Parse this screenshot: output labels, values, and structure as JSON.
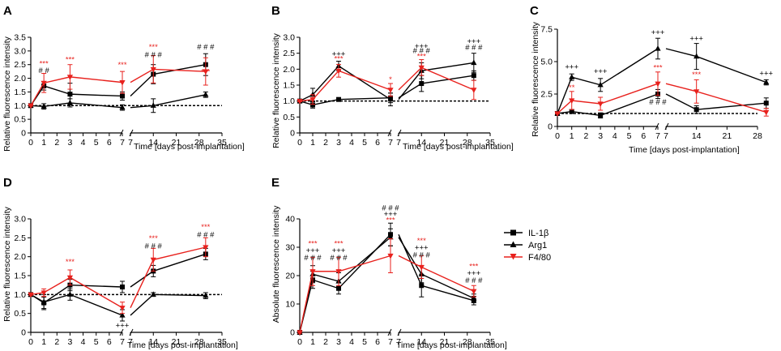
{
  "colors": {
    "il1b": "#000000",
    "arg1": "#000000",
    "f480": "#e8211d",
    "axis": "#000000"
  },
  "legend": [
    {
      "label": "IL-1β",
      "marker": "square",
      "color": "#000000"
    },
    {
      "label": "Arg1",
      "marker": "triangle-up",
      "color": "#000000"
    },
    {
      "label": "F4/80",
      "marker": "triangle-down",
      "color": "#e8211d"
    }
  ],
  "chart_data": [
    {
      "panel": "A",
      "type": "line",
      "ylabel": "Relative fluorescence intensity",
      "xlabel": "Time [days post-implantation]",
      "ylim": [
        0,
        3.5
      ],
      "yticks": [
        "0",
        "0.5",
        "1.0",
        "1.5",
        "2.0",
        "2.5",
        "3.0",
        "3.5"
      ],
      "xticks_left": [
        "0",
        "1",
        "2",
        "3",
        "4",
        "5",
        "6",
        "7"
      ],
      "xticks_right": [
        "7",
        "14",
        "21",
        "28",
        "35"
      ],
      "baseline": 1.0,
      "series": [
        {
          "name": "IL-1β",
          "x": [
            0,
            1,
            3,
            7,
            14,
            30
          ],
          "y": [
            1.0,
            1.72,
            1.42,
            1.35,
            2.15,
            2.5
          ],
          "err": [
            0.02,
            0.15,
            0.4,
            0.15,
            0.35,
            0.4
          ]
        },
        {
          "name": "Arg1",
          "x": [
            0,
            1,
            3,
            7,
            14,
            30
          ],
          "y": [
            1.0,
            0.97,
            1.1,
            0.93,
            1.0,
            1.4
          ],
          "err": [
            0.02,
            0.1,
            0.15,
            0.1,
            0.25,
            0.1
          ]
        },
        {
          "name": "F4/80",
          "x": [
            0,
            1,
            3,
            7,
            14,
            30
          ],
          "y": [
            1.0,
            1.83,
            2.05,
            1.85,
            2.33,
            2.25
          ],
          "err": [
            0.02,
            0.35,
            0.45,
            0.4,
            0.5,
            0.5
          ]
        }
      ],
      "annotations": [
        {
          "x": 1,
          "y": 2.45,
          "text": "***",
          "color": "red"
        },
        {
          "x": 1,
          "y": 2.2,
          "text": "# #",
          "color": "black"
        },
        {
          "x": 3,
          "y": 2.6,
          "text": "***",
          "color": "red"
        },
        {
          "x": 7,
          "y": 2.4,
          "text": "***",
          "color": "red"
        },
        {
          "x": 14,
          "y": 3.05,
          "text": "***",
          "color": "red"
        },
        {
          "x": 14,
          "y": 2.78,
          "text": "# # #",
          "color": "black"
        },
        {
          "x": 30,
          "y": 3.05,
          "text": "# # #",
          "color": "black"
        },
        {
          "x": 30,
          "y": 2.15,
          "text": "***",
          "color": "red"
        }
      ]
    },
    {
      "panel": "B",
      "type": "line",
      "ylabel": "Relative fluorescence intensity",
      "xlabel": "Time [days post-implantation]",
      "ylim": [
        0,
        3.0
      ],
      "yticks": [
        "0",
        "0.5",
        "1.0",
        "1.5",
        "2.0",
        "2.5",
        "3.0"
      ],
      "xticks_left": [
        "0",
        "1",
        "2",
        "3",
        "4",
        "5",
        "6",
        "7"
      ],
      "xticks_right": [
        "7",
        "14",
        "21",
        "28",
        "35"
      ],
      "baseline": 1.0,
      "series": [
        {
          "name": "IL-1β",
          "x": [
            0,
            1,
            3,
            7,
            14,
            30
          ],
          "y": [
            1.0,
            0.88,
            1.05,
            1.1,
            1.55,
            1.8
          ],
          "err": [
            0.02,
            0.1,
            0.04,
            0.15,
            0.25,
            0.15
          ]
        },
        {
          "name": "Arg1",
          "x": [
            0,
            1,
            3,
            7,
            14,
            30
          ],
          "y": [
            1.0,
            1.2,
            2.1,
            1.05,
            1.95,
            2.2
          ],
          "err": [
            0.02,
            0.2,
            0.15,
            0.2,
            0.25,
            0.3
          ]
        },
        {
          "name": "F4/80",
          "x": [
            0,
            1,
            3,
            7,
            14,
            30
          ],
          "y": [
            1.0,
            1.05,
            1.95,
            1.35,
            2.05,
            1.35
          ],
          "err": [
            0.02,
            0.15,
            0.2,
            0.2,
            0.25,
            0.3
          ]
        }
      ],
      "annotations": [
        {
          "x": 3,
          "y": 2.4,
          "text": "+++",
          "color": "black"
        },
        {
          "x": 3,
          "y": 2.25,
          "text": "***",
          "color": "red"
        },
        {
          "x": 7,
          "y": 1.6,
          "text": "*",
          "color": "red"
        },
        {
          "x": 14,
          "y": 2.65,
          "text": "+++",
          "color": "black"
        },
        {
          "x": 14,
          "y": 2.5,
          "text": "# # #",
          "color": "black"
        },
        {
          "x": 14,
          "y": 2.33,
          "text": "***",
          "color": "red"
        },
        {
          "x": 30,
          "y": 2.8,
          "text": "+++",
          "color": "black"
        },
        {
          "x": 30,
          "y": 2.6,
          "text": "# # #",
          "color": "black"
        }
      ]
    },
    {
      "panel": "C",
      "type": "line",
      "ylabel": "Relative fluorescence intensity",
      "xlabel": "Time [days post-implantation]",
      "ylim": [
        0,
        7.5
      ],
      "yticks": [
        "0",
        "2.5",
        "5.0",
        "7.5"
      ],
      "xticks_left": [
        "0",
        "1",
        "2",
        "3",
        "4",
        "5",
        "6",
        "7"
      ],
      "xticks_right": [
        "7",
        "14",
        "21",
        "28"
      ],
      "baseline": 1.0,
      "series": [
        {
          "name": "IL-1β",
          "x": [
            0,
            1,
            3,
            7,
            14,
            30
          ],
          "y": [
            1.0,
            1.15,
            0.85,
            2.5,
            1.3,
            1.8
          ],
          "err": [
            0.02,
            0.15,
            0.2,
            0.35,
            0.3,
            0.4
          ]
        },
        {
          "name": "Arg1",
          "x": [
            0,
            1,
            3,
            7,
            14,
            30
          ],
          "y": [
            1.0,
            3.8,
            3.2,
            6.0,
            5.4,
            3.4
          ],
          "err": [
            0.02,
            0.25,
            0.5,
            0.8,
            1.0,
            0.2
          ]
        },
        {
          "name": "F4/80",
          "x": [
            0,
            1,
            3,
            7,
            14,
            30
          ],
          "y": [
            1.0,
            2.0,
            1.75,
            3.3,
            2.7,
            1.1
          ],
          "err": [
            0.02,
            0.7,
            0.5,
            0.9,
            0.9,
            0.3
          ]
        }
      ],
      "annotations": [
        {
          "x": 1,
          "y": 4.4,
          "text": "+++",
          "color": "black"
        },
        {
          "x": 1,
          "y": 2.8,
          "text": "**",
          "color": "red"
        },
        {
          "x": 3,
          "y": 4.05,
          "text": "+++",
          "color": "black"
        },
        {
          "x": 7,
          "y": 7.05,
          "text": "+++",
          "color": "black"
        },
        {
          "x": 7,
          "y": 4.35,
          "text": "***",
          "color": "red"
        },
        {
          "x": 7,
          "y": 1.7,
          "text": "# # #",
          "color": "black"
        },
        {
          "x": 14,
          "y": 6.6,
          "text": "+++",
          "color": "black"
        },
        {
          "x": 14,
          "y": 3.8,
          "text": "***",
          "color": "red"
        },
        {
          "x": 30,
          "y": 3.9,
          "text": "+++",
          "color": "black"
        }
      ]
    },
    {
      "panel": "D",
      "type": "line",
      "ylabel": "Relative fluorescence intensity",
      "xlabel": "Time [days post-implantation]",
      "ylim": [
        0,
        3.0
      ],
      "yticks": [
        "0",
        "0.5",
        "1.0",
        "1.5",
        "2.0",
        "2.5",
        "3.0"
      ],
      "xticks_left": [
        "0",
        "1",
        "2",
        "3",
        "4",
        "5",
        "6",
        "7"
      ],
      "xticks_right": [
        "7",
        "14",
        "21",
        "28",
        "35"
      ],
      "baseline": 1.0,
      "series": [
        {
          "name": "IL-1β",
          "x": [
            0,
            1,
            3,
            7,
            14,
            30
          ],
          "y": [
            1.0,
            0.78,
            1.25,
            1.2,
            1.62,
            2.07
          ],
          "err": [
            0.02,
            0.15,
            0.15,
            0.15,
            0.15,
            0.15
          ]
        },
        {
          "name": "Arg1",
          "x": [
            0,
            1,
            3,
            7,
            14,
            30
          ],
          "y": [
            1.0,
            0.8,
            1.0,
            0.45,
            1.0,
            0.97
          ],
          "err": [
            0.02,
            0.2,
            0.15,
            0.15,
            0.05,
            0.08
          ]
        },
        {
          "name": "F4/80",
          "x": [
            0,
            1,
            3,
            7,
            14,
            30
          ],
          "y": [
            1.0,
            1.05,
            1.45,
            0.65,
            1.92,
            2.25
          ],
          "err": [
            0.02,
            0.1,
            0.2,
            0.15,
            0.3,
            0.25
          ]
        }
      ],
      "annotations": [
        {
          "x": 3,
          "y": 1.8,
          "text": "***",
          "color": "red"
        },
        {
          "x": 7,
          "y": 0.12,
          "text": "+++",
          "color": "black"
        },
        {
          "x": 14,
          "y": 2.42,
          "text": "***",
          "color": "red"
        },
        {
          "x": 14,
          "y": 2.22,
          "text": "# # #",
          "color": "black"
        },
        {
          "x": 30,
          "y": 2.72,
          "text": "***",
          "color": "red"
        },
        {
          "x": 30,
          "y": 2.52,
          "text": "# # #",
          "color": "black"
        }
      ]
    },
    {
      "panel": "E",
      "type": "line",
      "ylabel": "Absolute fluorescence intensity",
      "xlabel": "Time [days post-implantation]",
      "ylim": [
        0,
        40
      ],
      "yticks": [
        "0",
        "10",
        "20",
        "30",
        "40"
      ],
      "xticks_left": [
        "0",
        "1",
        "2",
        "3",
        "4",
        "5",
        "6",
        "7"
      ],
      "xticks_right": [
        "7",
        "14",
        "21",
        "28",
        "35"
      ],
      "baseline": null,
      "series": [
        {
          "name": "IL-1β",
          "x": [
            0,
            1,
            3,
            7,
            14,
            30
          ],
          "y": [
            0,
            18.5,
            15.5,
            34.5,
            16.5,
            11.2
          ],
          "err": [
            0.3,
            3.0,
            2.0,
            4.0,
            4.0,
            1.5
          ]
        },
        {
          "name": "Arg1",
          "x": [
            0,
            1,
            3,
            7,
            14,
            30
          ],
          "y": [
            0,
            20.5,
            18.0,
            33.5,
            20.5,
            12.0
          ],
          "err": [
            0.3,
            3.0,
            3.0,
            3.0,
            3.0,
            1.5
          ]
        },
        {
          "name": "F4/80",
          "x": [
            0,
            1,
            3,
            7,
            14,
            30
          ],
          "y": [
            0,
            21.5,
            21.5,
            27.0,
            23.0,
            14.5
          ],
          "err": [
            0.3,
            5.0,
            5.0,
            6.0,
            4.0,
            2.0
          ]
        }
      ],
      "annotations": [
        {
          "x": 1,
          "y": 30.5,
          "text": "***",
          "color": "red"
        },
        {
          "x": 1,
          "y": 28.0,
          "text": "+++",
          "color": "black"
        },
        {
          "x": 1,
          "y": 25.5,
          "text": "# # #",
          "color": "black"
        },
        {
          "x": 3,
          "y": 30.5,
          "text": "***",
          "color": "red"
        },
        {
          "x": 3,
          "y": 28.0,
          "text": "+++",
          "color": "black"
        },
        {
          "x": 3,
          "y": 25.5,
          "text": "# # #",
          "color": "black"
        },
        {
          "x": 7,
          "y": 43.0,
          "text": "# # #",
          "color": "black"
        },
        {
          "x": 7,
          "y": 40.8,
          "text": "+++",
          "color": "black"
        },
        {
          "x": 7,
          "y": 38.7,
          "text": "***",
          "color": "red"
        },
        {
          "x": 14,
          "y": 31.5,
          "text": "***",
          "color": "red"
        },
        {
          "x": 14,
          "y": 29.0,
          "text": "+++",
          "color": "black"
        },
        {
          "x": 14,
          "y": 26.5,
          "text": "# # #",
          "color": "black"
        },
        {
          "x": 30,
          "y": 22.5,
          "text": "***",
          "color": "red"
        },
        {
          "x": 30,
          "y": 20.0,
          "text": "+++",
          "color": "black"
        },
        {
          "x": 30,
          "y": 17.5,
          "text": "# # #",
          "color": "black"
        }
      ]
    }
  ]
}
